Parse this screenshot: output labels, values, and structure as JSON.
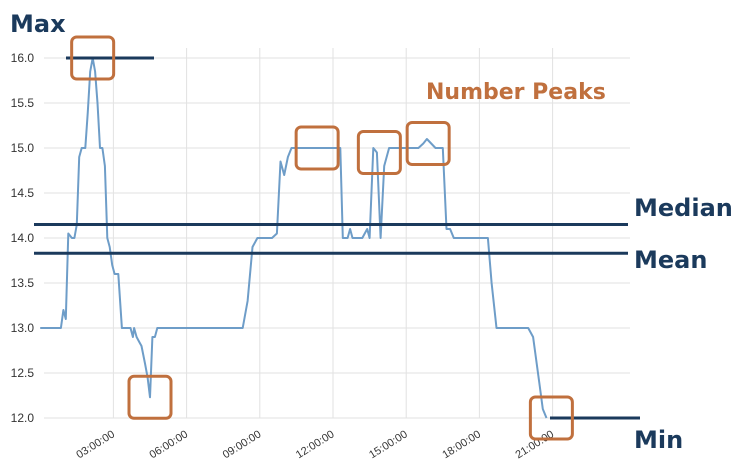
{
  "chart_data": {
    "type": "line",
    "title": "",
    "xlabel": "",
    "ylabel": "",
    "ylim": [
      12.0,
      16.0
    ],
    "grid": true,
    "y_ticks": [
      "12.0",
      "12.5",
      "13.0",
      "13.5",
      "14.0",
      "14.5",
      "15.0",
      "15.5",
      "16.0"
    ],
    "x_ticks": [
      {
        "hour": 3,
        "label": "03:00:00"
      },
      {
        "hour": 6,
        "label": "06:00:00"
      },
      {
        "hour": 9,
        "label": "09:00:00"
      },
      {
        "hour": 12,
        "label": "12:00:00"
      },
      {
        "hour": 15,
        "label": "15:00:00"
      },
      {
        "hour": 18,
        "label": "18:00:00"
      },
      {
        "hour": 21,
        "label": "21:00:00"
      }
    ],
    "series": [
      {
        "color": "#6e9dc8",
        "points": [
          [
            0.0,
            13.0
          ],
          [
            0.85,
            13.0
          ],
          [
            0.95,
            13.2
          ],
          [
            1.05,
            13.1
          ],
          [
            1.15,
            14.05
          ],
          [
            1.3,
            14.0
          ],
          [
            1.4,
            14.0
          ],
          [
            1.5,
            14.15
          ],
          [
            1.6,
            14.9
          ],
          [
            1.7,
            15.0
          ],
          [
            1.85,
            15.0
          ],
          [
            1.95,
            15.4
          ],
          [
            2.05,
            15.85
          ],
          [
            2.15,
            16.0
          ],
          [
            2.25,
            15.85
          ],
          [
            2.35,
            15.5
          ],
          [
            2.45,
            15.0
          ],
          [
            2.55,
            15.0
          ],
          [
            2.65,
            14.8
          ],
          [
            2.75,
            14.0
          ],
          [
            2.85,
            13.9
          ],
          [
            2.95,
            13.7
          ],
          [
            3.05,
            13.6
          ],
          [
            3.2,
            13.6
          ],
          [
            3.35,
            13.0
          ],
          [
            3.55,
            13.0
          ],
          [
            3.7,
            13.0
          ],
          [
            3.8,
            12.9
          ],
          [
            3.85,
            13.0
          ],
          [
            3.95,
            12.9
          ],
          [
            4.05,
            12.85
          ],
          [
            4.15,
            12.8
          ],
          [
            4.3,
            12.6
          ],
          [
            4.4,
            12.45
          ],
          [
            4.5,
            12.23
          ],
          [
            4.6,
            12.9
          ],
          [
            4.7,
            12.9
          ],
          [
            4.8,
            13.0
          ],
          [
            4.9,
            13.0
          ],
          [
            5.2,
            13.0
          ],
          [
            6.0,
            13.0
          ],
          [
            7.0,
            13.0
          ],
          [
            8.3,
            13.0
          ],
          [
            8.5,
            13.3
          ],
          [
            8.7,
            13.9
          ],
          [
            8.9,
            14.0
          ],
          [
            9.5,
            14.0
          ],
          [
            9.7,
            14.05
          ],
          [
            9.85,
            14.85
          ],
          [
            10.0,
            14.7
          ],
          [
            10.15,
            14.9
          ],
          [
            10.3,
            15.0
          ],
          [
            11.5,
            15.0
          ],
          [
            12.3,
            15.0
          ],
          [
            12.4,
            14.0
          ],
          [
            12.6,
            14.0
          ],
          [
            12.7,
            14.1
          ],
          [
            12.8,
            14.0
          ],
          [
            13.2,
            14.0
          ],
          [
            13.4,
            14.1
          ],
          [
            13.5,
            14.0
          ],
          [
            13.65,
            15.0
          ],
          [
            13.8,
            14.95
          ],
          [
            13.95,
            14.0
          ],
          [
            14.1,
            14.8
          ],
          [
            14.3,
            15.0
          ],
          [
            15.5,
            15.0
          ],
          [
            15.7,
            15.05
          ],
          [
            15.85,
            15.1
          ],
          [
            16.2,
            15.0
          ],
          [
            16.5,
            15.0
          ],
          [
            16.65,
            14.1
          ],
          [
            16.8,
            14.1
          ],
          [
            16.95,
            14.0
          ],
          [
            18.2,
            14.0
          ],
          [
            18.35,
            14.0
          ],
          [
            18.5,
            13.5
          ],
          [
            18.7,
            13.0
          ],
          [
            19.4,
            13.0
          ],
          [
            20.0,
            13.0
          ],
          [
            20.2,
            12.9
          ],
          [
            20.45,
            12.4
          ],
          [
            20.6,
            12.1
          ],
          [
            20.75,
            12.0
          ]
        ]
      }
    ],
    "reference_lines": [
      {
        "label": "Max",
        "value": 16.0
      },
      {
        "label": "Median",
        "value": 14.15
      },
      {
        "label": "Mean",
        "value": 13.83
      },
      {
        "label": "Min",
        "value": 12.0
      }
    ],
    "peaks_label": "Number Peaks",
    "peak_markers": [
      {
        "hour": 2.15,
        "value": 16.0
      },
      {
        "hour": 4.5,
        "value": 12.23
      },
      {
        "hour": 11.35,
        "value": 15.0
      },
      {
        "hour": 13.9,
        "value": 14.95
      },
      {
        "hour": 15.9,
        "value": 15.05
      },
      {
        "hour": 20.95,
        "value": 12.0
      }
    ],
    "colors": {
      "series": "#6e9dc8",
      "reference_line": "#1b3a5c",
      "annotation_text": "#1b3a5c",
      "peak_box": "#c0703e",
      "peaks_text": "#c0703e",
      "grid": "#e2e2e2"
    }
  }
}
